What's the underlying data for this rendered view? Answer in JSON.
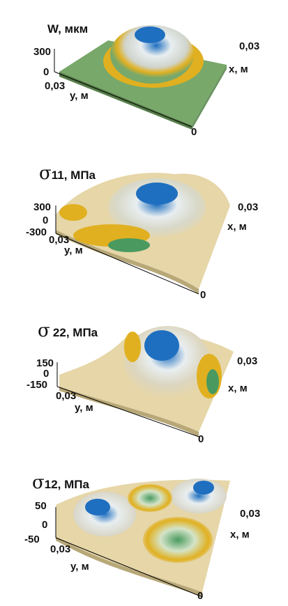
{
  "chart_data": [
    {
      "type": "surface",
      "title": "W, мкм",
      "z_ticks": [
        "300",
        "0"
      ],
      "y_label": "y, м",
      "y_ticks": [
        "0,03"
      ],
      "x_label": "x, м",
      "x_ticks": [
        "0,03",
        "0"
      ],
      "x_range": [
        0,
        0.03
      ],
      "y_range": [
        0,
        0.03
      ],
      "z_range": [
        0,
        300
      ],
      "colors": {
        "high": "#1f6fc0",
        "mid": "#e8eef0",
        "ring": "#e0b020",
        "base": "#78a86a"
      }
    },
    {
      "type": "surface",
      "title_symbol": "σ",
      "title_rest": "11, МПа",
      "z_ticks": [
        "300",
        "0",
        "-300"
      ],
      "y_label": "y, м",
      "y_ticks": [
        "0,03"
      ],
      "x_label": "x, м",
      "x_ticks": [
        "0,03",
        "0"
      ],
      "z_range": [
        -300,
        300
      ],
      "colors": {
        "high": "#1f6fc0",
        "mid": "#e8eef0",
        "ring": "#e0b020",
        "base": "#e6d6a8"
      }
    },
    {
      "type": "surface",
      "title_symbol": "σ",
      "title_rest": "22, МПа",
      "z_ticks": [
        "150",
        "0",
        "-150"
      ],
      "y_label": "y, м",
      "y_ticks": [
        "0,03"
      ],
      "x_label": "x, м",
      "x_ticks": [
        "0,03",
        "0"
      ],
      "z_range": [
        -150,
        150
      ],
      "colors": {
        "high": "#1f6fc0",
        "mid": "#e8eef0",
        "ring": "#e0b020",
        "base": "#e6d6a8"
      }
    },
    {
      "type": "surface",
      "title_symbol": "σ",
      "title_rest": "12, МПа",
      "z_ticks": [
        "50",
        "0",
        "-50"
      ],
      "y_label": "y, м",
      "y_ticks": [
        "0,03"
      ],
      "x_label": "x, м",
      "x_ticks": [
        "0,03",
        "0"
      ],
      "z_range": [
        -50,
        50
      ],
      "colors": {
        "high": "#1f6fc0",
        "mid": "#e8eef0",
        "ring": "#e0b020",
        "base": "#e6d6a8",
        "low": "#4a9a60"
      }
    }
  ]
}
